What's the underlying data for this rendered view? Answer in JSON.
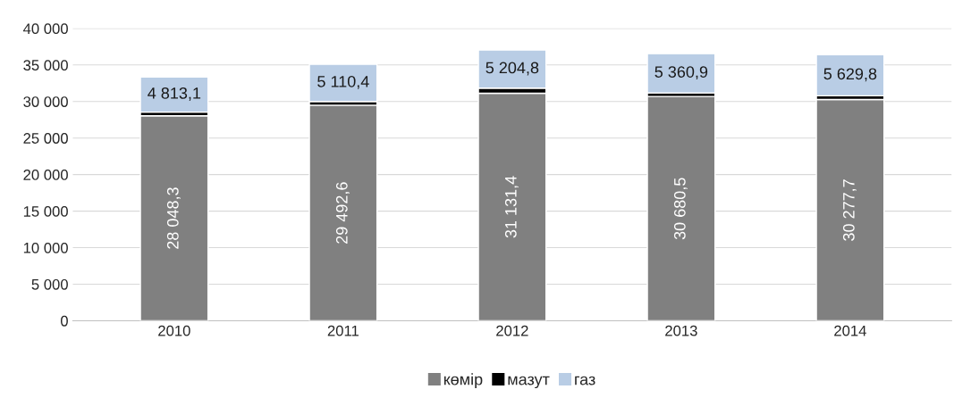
{
  "chart_data": {
    "type": "bar",
    "stacked": true,
    "categories": [
      "2010",
      "2011",
      "2012",
      "2013",
      "2014"
    ],
    "series": [
      {
        "name": "көмір",
        "color": "#808080",
        "values": [
          28048.3,
          29492.6,
          31131.4,
          30680.5,
          30277.7
        ],
        "value_labels": [
          "28 048,3",
          "29 492,6",
          "31 131,4",
          "30 680,5",
          "30 277,7"
        ]
      },
      {
        "name": "мазут",
        "color": "#000000",
        "values": [
          500,
          500,
          700,
          500,
          500
        ]
      },
      {
        "name": "газ",
        "color": "#b9cde5",
        "values": [
          4813.1,
          5110.4,
          5204.8,
          5360.9,
          5629.8
        ],
        "value_labels": [
          "4 813,1",
          "5 110,4",
          "5 204,8",
          "5 360,9",
          "5 629,8"
        ]
      }
    ],
    "ylim": [
      0,
      40000
    ],
    "yticks": [
      {
        "value": 0,
        "label": "0"
      },
      {
        "value": 5000,
        "label": "5 000"
      },
      {
        "value": 10000,
        "label": "10 000"
      },
      {
        "value": 15000,
        "label": "15 000"
      },
      {
        "value": 20000,
        "label": "20 000"
      },
      {
        "value": 25000,
        "label": "25 000"
      },
      {
        "value": 30000,
        "label": "30 000"
      },
      {
        "value": 35000,
        "label": "35 000"
      },
      {
        "value": 40000,
        "label": "40 000"
      }
    ],
    "grid": "y",
    "legend": "bottom"
  }
}
